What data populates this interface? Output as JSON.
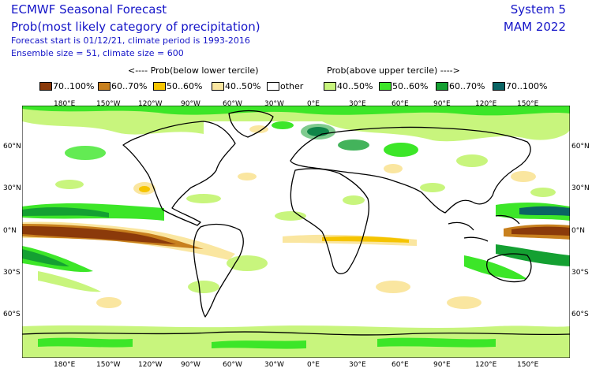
{
  "header": {
    "title": "ECMWF Seasonal Forecast",
    "subtitle": "Prob(most likely category of precipitation)",
    "info_line1": "Forecast start is 01/12/21, climate period is 1993-2016",
    "info_line2": "Ensemble size = 51, climate size = 600",
    "system": "System 5",
    "season": "MAM 2022"
  },
  "legend": {
    "below_title": "<---- Prob(below lower tercile)",
    "above_title": "Prob(above upper tercile) ---->",
    "items": [
      {
        "label": "70..100%",
        "color": "#8b3a0a"
      },
      {
        "label": "60..70%",
        "color": "#c8801e"
      },
      {
        "label": "50..60%",
        "color": "#f5c400"
      },
      {
        "label": "40..50%",
        "color": "#fae6a0"
      },
      {
        "label": "other",
        "color": "#ffffff"
      },
      {
        "label": "40..50%",
        "color": "#c8f57d"
      },
      {
        "label": "50..60%",
        "color": "#3ce628"
      },
      {
        "label": "60..70%",
        "color": "#14a032"
      },
      {
        "label": "70..100%",
        "color": "#0a6464"
      }
    ]
  },
  "axes": {
    "lon_labels": [
      "180°E",
      "150°W",
      "120°W",
      "90°W",
      "60°W",
      "30°W",
      "0°E",
      "30°E",
      "60°E",
      "90°E",
      "120°E",
      "150°E"
    ],
    "lat_labels": [
      "60°N",
      "30°N",
      "0°N",
      "30°S",
      "60°S"
    ]
  }
}
